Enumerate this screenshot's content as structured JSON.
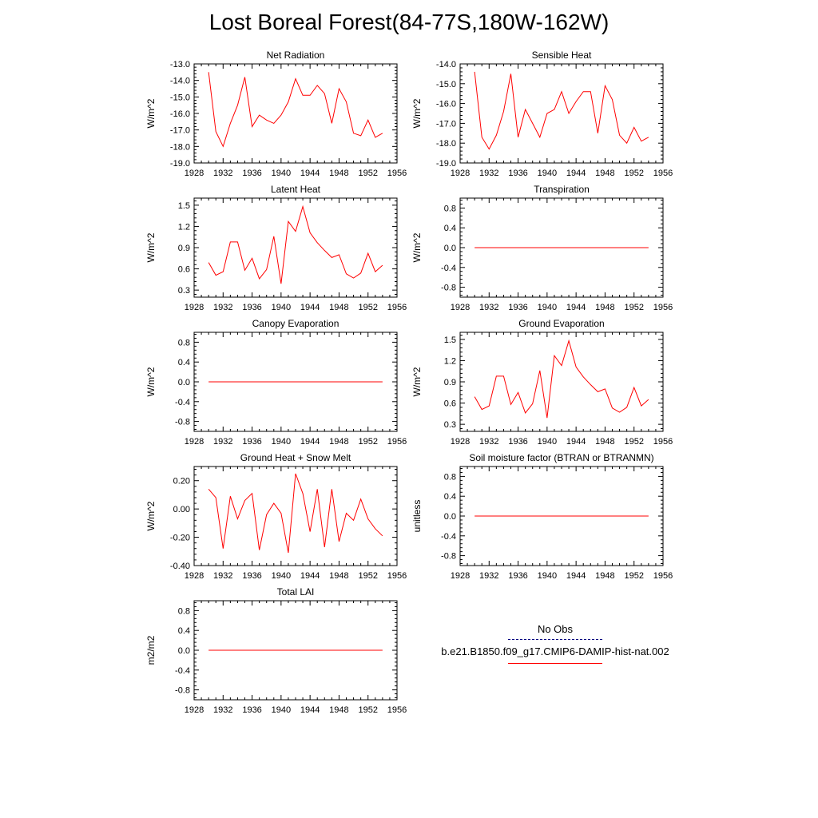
{
  "title": "Lost Boreal Forest(84-77S,180W-162W)",
  "legend": {
    "obs_label": "No Obs",
    "obs_color": "#000080",
    "model_label": "b.e21.B1850.f09_g17.CMIP6-DAMIP-hist-nat.002",
    "model_color": "#ff0000"
  },
  "chart_data": [
    {
      "type": "line",
      "title": "Net Radiation",
      "ylabel": "W/m^2",
      "xlim": [
        1928,
        1956
      ],
      "xticks": [
        1928,
        1932,
        1936,
        1940,
        1944,
        1948,
        1952,
        1956
      ],
      "ylim": [
        -19.0,
        -13.0
      ],
      "yticks": [
        -19.0,
        -18.0,
        -17.0,
        -16.0,
        -15.0,
        -14.0,
        -13.0
      ],
      "ydecimals": 1,
      "series": [
        {
          "x": [
            1930,
            1931,
            1932,
            1933,
            1934,
            1935,
            1936,
            1937,
            1938,
            1939,
            1940,
            1941,
            1942,
            1943,
            1944,
            1945,
            1946,
            1947,
            1948,
            1949,
            1950,
            1951,
            1952,
            1953,
            1954
          ],
          "y": [
            -13.5,
            -17.1,
            -18.0,
            -16.6,
            -15.5,
            -13.8,
            -16.8,
            -16.1,
            -16.4,
            -16.6,
            -16.1,
            -15.3,
            -13.9,
            -14.9,
            -14.9,
            -14.3,
            -14.8,
            -16.6,
            -14.5,
            -15.3,
            -17.2,
            -17.35,
            -16.4,
            -17.45,
            -17.2
          ]
        }
      ]
    },
    {
      "type": "line",
      "title": "Sensible Heat",
      "ylabel": "W/m^2",
      "xlim": [
        1928,
        1956
      ],
      "xticks": [
        1928,
        1932,
        1936,
        1940,
        1944,
        1948,
        1952,
        1956
      ],
      "ylim": [
        -19.0,
        -14.0
      ],
      "yticks": [
        -19.0,
        -18.0,
        -17.0,
        -16.0,
        -15.0,
        -14.0
      ],
      "ydecimals": 1,
      "series": [
        {
          "x": [
            1930,
            1931,
            1932,
            1933,
            1934,
            1935,
            1936,
            1937,
            1938,
            1939,
            1940,
            1941,
            1942,
            1943,
            1944,
            1945,
            1946,
            1947,
            1948,
            1949,
            1950,
            1951,
            1952,
            1953,
            1954
          ],
          "y": [
            -14.4,
            -17.7,
            -18.3,
            -17.6,
            -16.4,
            -14.5,
            -17.7,
            -16.3,
            -17.0,
            -17.7,
            -16.5,
            -16.3,
            -15.4,
            -16.5,
            -15.9,
            -15.4,
            -15.4,
            -17.5,
            -15.1,
            -15.8,
            -17.6,
            -18.0,
            -17.2,
            -17.9,
            -17.7
          ]
        }
      ]
    },
    {
      "type": "line",
      "title": "Latent Heat",
      "ylabel": "W/m^2",
      "xlim": [
        1928,
        1956
      ],
      "xticks": [
        1928,
        1932,
        1936,
        1940,
        1944,
        1948,
        1952,
        1956
      ],
      "ylim": [
        0.2,
        1.6
      ],
      "yticks": [
        0.3,
        0.6,
        0.9,
        1.2,
        1.5
      ],
      "ydecimals": 1,
      "series": [
        {
          "x": [
            1930,
            1931,
            1932,
            1933,
            1934,
            1935,
            1936,
            1937,
            1938,
            1939,
            1940,
            1941,
            1942,
            1943,
            1944,
            1945,
            1946,
            1947,
            1948,
            1949,
            1950,
            1951,
            1952,
            1953,
            1954
          ],
          "y": [
            0.69,
            0.51,
            0.56,
            0.98,
            0.98,
            0.58,
            0.75,
            0.46,
            0.59,
            1.06,
            0.39,
            1.27,
            1.13,
            1.48,
            1.11,
            0.97,
            0.86,
            0.76,
            0.8,
            0.53,
            0.47,
            0.54,
            0.82,
            0.56,
            0.65
          ]
        }
      ]
    },
    {
      "type": "line",
      "title": "Transpiration",
      "ylabel": "W/m^2",
      "xlim": [
        1928,
        1956
      ],
      "xticks": [
        1928,
        1932,
        1936,
        1940,
        1944,
        1948,
        1952,
        1956
      ],
      "ylim": [
        -1.0,
        1.0
      ],
      "yticks": [
        -0.8,
        -0.4,
        0.0,
        0.4,
        0.8
      ],
      "ydecimals": 1,
      "series": [
        {
          "x": [
            1930,
            1954
          ],
          "y": [
            0.0,
            0.0
          ]
        }
      ]
    },
    {
      "type": "line",
      "title": "Canopy Evaporation",
      "ylabel": "W/m^2",
      "xlim": [
        1928,
        1956
      ],
      "xticks": [
        1928,
        1932,
        1936,
        1940,
        1944,
        1948,
        1952,
        1956
      ],
      "ylim": [
        -1.0,
        1.0
      ],
      "yticks": [
        -0.8,
        -0.4,
        0.0,
        0.4,
        0.8
      ],
      "ydecimals": 1,
      "series": [
        {
          "x": [
            1930,
            1954
          ],
          "y": [
            0.0,
            0.0
          ]
        }
      ]
    },
    {
      "type": "line",
      "title": "Ground Evaporation",
      "ylabel": "W/m^2",
      "xlim": [
        1928,
        1956
      ],
      "xticks": [
        1928,
        1932,
        1936,
        1940,
        1944,
        1948,
        1952,
        1956
      ],
      "ylim": [
        0.2,
        1.6
      ],
      "yticks": [
        0.3,
        0.6,
        0.9,
        1.2,
        1.5
      ],
      "ydecimals": 1,
      "series": [
        {
          "x": [
            1930,
            1931,
            1932,
            1933,
            1934,
            1935,
            1936,
            1937,
            1938,
            1939,
            1940,
            1941,
            1942,
            1943,
            1944,
            1945,
            1946,
            1947,
            1948,
            1949,
            1950,
            1951,
            1952,
            1953,
            1954
          ],
          "y": [
            0.69,
            0.51,
            0.56,
            0.98,
            0.98,
            0.58,
            0.75,
            0.46,
            0.59,
            1.06,
            0.39,
            1.27,
            1.13,
            1.48,
            1.11,
            0.97,
            0.86,
            0.76,
            0.8,
            0.53,
            0.47,
            0.54,
            0.82,
            0.56,
            0.65
          ]
        }
      ]
    },
    {
      "type": "line",
      "title": "Ground Heat + Snow Melt",
      "ylabel": "W/m^2",
      "xlim": [
        1928,
        1956
      ],
      "xticks": [
        1928,
        1932,
        1936,
        1940,
        1944,
        1948,
        1952,
        1956
      ],
      "ylim": [
        -0.4,
        0.3
      ],
      "yticks": [
        -0.4,
        -0.2,
        0.0,
        0.2
      ],
      "ydecimals": 2,
      "series": [
        {
          "x": [
            1930,
            1931,
            1932,
            1933,
            1934,
            1935,
            1936,
            1937,
            1938,
            1939,
            1940,
            1941,
            1942,
            1943,
            1944,
            1945,
            1946,
            1947,
            1948,
            1949,
            1950,
            1951,
            1952,
            1953,
            1954
          ],
          "y": [
            0.14,
            0.08,
            -0.28,
            0.09,
            -0.07,
            0.06,
            0.11,
            -0.29,
            -0.04,
            0.04,
            -0.03,
            -0.31,
            0.25,
            0.11,
            -0.16,
            0.14,
            -0.27,
            0.14,
            -0.23,
            -0.03,
            -0.08,
            0.07,
            -0.07,
            -0.14,
            -0.19
          ]
        }
      ]
    },
    {
      "type": "line",
      "title": "Soil moisture factor (BTRAN or BTRANMN)",
      "ylabel": "unitless",
      "xlim": [
        1928,
        1956
      ],
      "xticks": [
        1928,
        1932,
        1936,
        1940,
        1944,
        1948,
        1952,
        1956
      ],
      "ylim": [
        -1.0,
        1.0
      ],
      "yticks": [
        -0.8,
        -0.4,
        0.0,
        0.4,
        0.8
      ],
      "ydecimals": 1,
      "series": [
        {
          "x": [
            1930,
            1954
          ],
          "y": [
            0.0,
            0.0
          ]
        }
      ]
    },
    {
      "type": "line",
      "title": "Total LAI",
      "ylabel": "m2/m2",
      "xlim": [
        1928,
        1956
      ],
      "xticks": [
        1928,
        1932,
        1936,
        1940,
        1944,
        1948,
        1952,
        1956
      ],
      "ylim": [
        -1.0,
        1.0
      ],
      "yticks": [
        -0.8,
        -0.4,
        0.0,
        0.4,
        0.8
      ],
      "ydecimals": 1,
      "series": [
        {
          "x": [
            1930,
            1954
          ],
          "y": [
            0.0,
            0.0
          ]
        }
      ]
    }
  ]
}
